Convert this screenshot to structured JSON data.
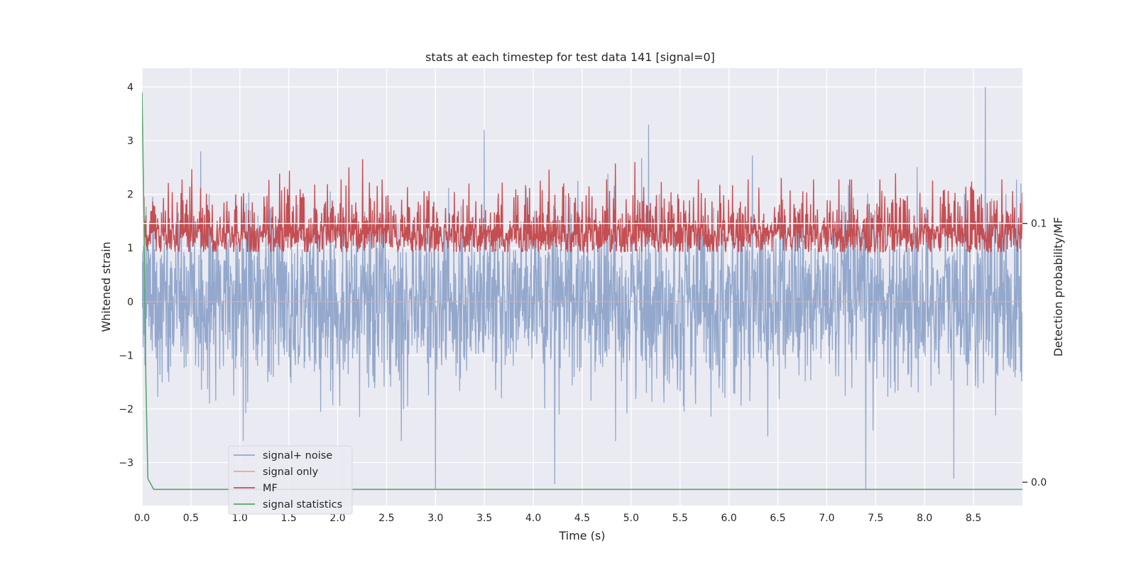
{
  "chart_data": {
    "type": "line",
    "title": "stats at each timestep for test data 141 [signal=0]",
    "xlabel": "Time (s)",
    "ylabel": "Whitened strain",
    "y2label": "Detection probability/MF",
    "xlim": [
      0.0,
      9.0
    ],
    "ylim": [
      -3.8,
      4.35
    ],
    "y2lim": [
      -0.009,
      0.16
    ],
    "xticks": [
      0.0,
      0.5,
      1.0,
      1.5,
      2.0,
      2.5,
      3.0,
      3.5,
      4.0,
      4.5,
      5.0,
      5.5,
      6.0,
      6.5,
      7.0,
      7.5,
      8.0,
      8.5
    ],
    "xtick_labels": [
      "0.0",
      "0.5",
      "1.0",
      "1.5",
      "2.0",
      "2.5",
      "3.0",
      "3.5",
      "4.0",
      "4.5",
      "5.0",
      "5.5",
      "6.0",
      "6.5",
      "7.0",
      "7.5",
      "8.0",
      "8.5"
    ],
    "yticks": [
      -3,
      -2,
      -1,
      0,
      1,
      2,
      3,
      4
    ],
    "ytick_labels": [
      "−3",
      "−2",
      "−1",
      "0",
      "1",
      "2",
      "3",
      "4"
    ],
    "y2ticks": [
      0.0,
      0.1
    ],
    "y2tick_labels": [
      "0.0",
      "0.1"
    ],
    "grid": true,
    "legend_position": "lower-left",
    "series": [
      {
        "name": "signal+ noise",
        "color": "#93a8cc",
        "axis": "left",
        "kind": "noise",
        "sigma": 0.8,
        "x_range": [
          0.0,
          9.0
        ],
        "peaks": [
          {
            "x": 3.5,
            "y": 3.2
          },
          {
            "x": 5.18,
            "y": 3.3
          },
          {
            "x": 8.62,
            "y": 4.0
          },
          {
            "x": 0.6,
            "y": 2.8
          },
          {
            "x": 3.0,
            "y": -3.5
          },
          {
            "x": 7.4,
            "y": -3.5
          },
          {
            "x": 4.22,
            "y": -3.4
          },
          {
            "x": 8.3,
            "y": -3.3
          }
        ]
      },
      {
        "name": "signal only",
        "color": "#e8a98a",
        "axis": "left",
        "kind": "flat",
        "value": 0
      },
      {
        "name": "MF",
        "color": "#c44e52",
        "axis": "right",
        "kind": "band",
        "center": 0.1,
        "low": 0.089,
        "high": 0.117,
        "spike_max": 0.125,
        "x_range": [
          0.02,
          9.0
        ]
      },
      {
        "name": "signal statistics",
        "color": "#55a868",
        "axis": "left",
        "kind": "line",
        "x": [
          0.0,
          0.02,
          0.04,
          0.06,
          0.12,
          9.0
        ],
        "y": [
          3.9,
          1.5,
          -1.5,
          -3.3,
          -3.5,
          -3.5
        ]
      }
    ]
  }
}
